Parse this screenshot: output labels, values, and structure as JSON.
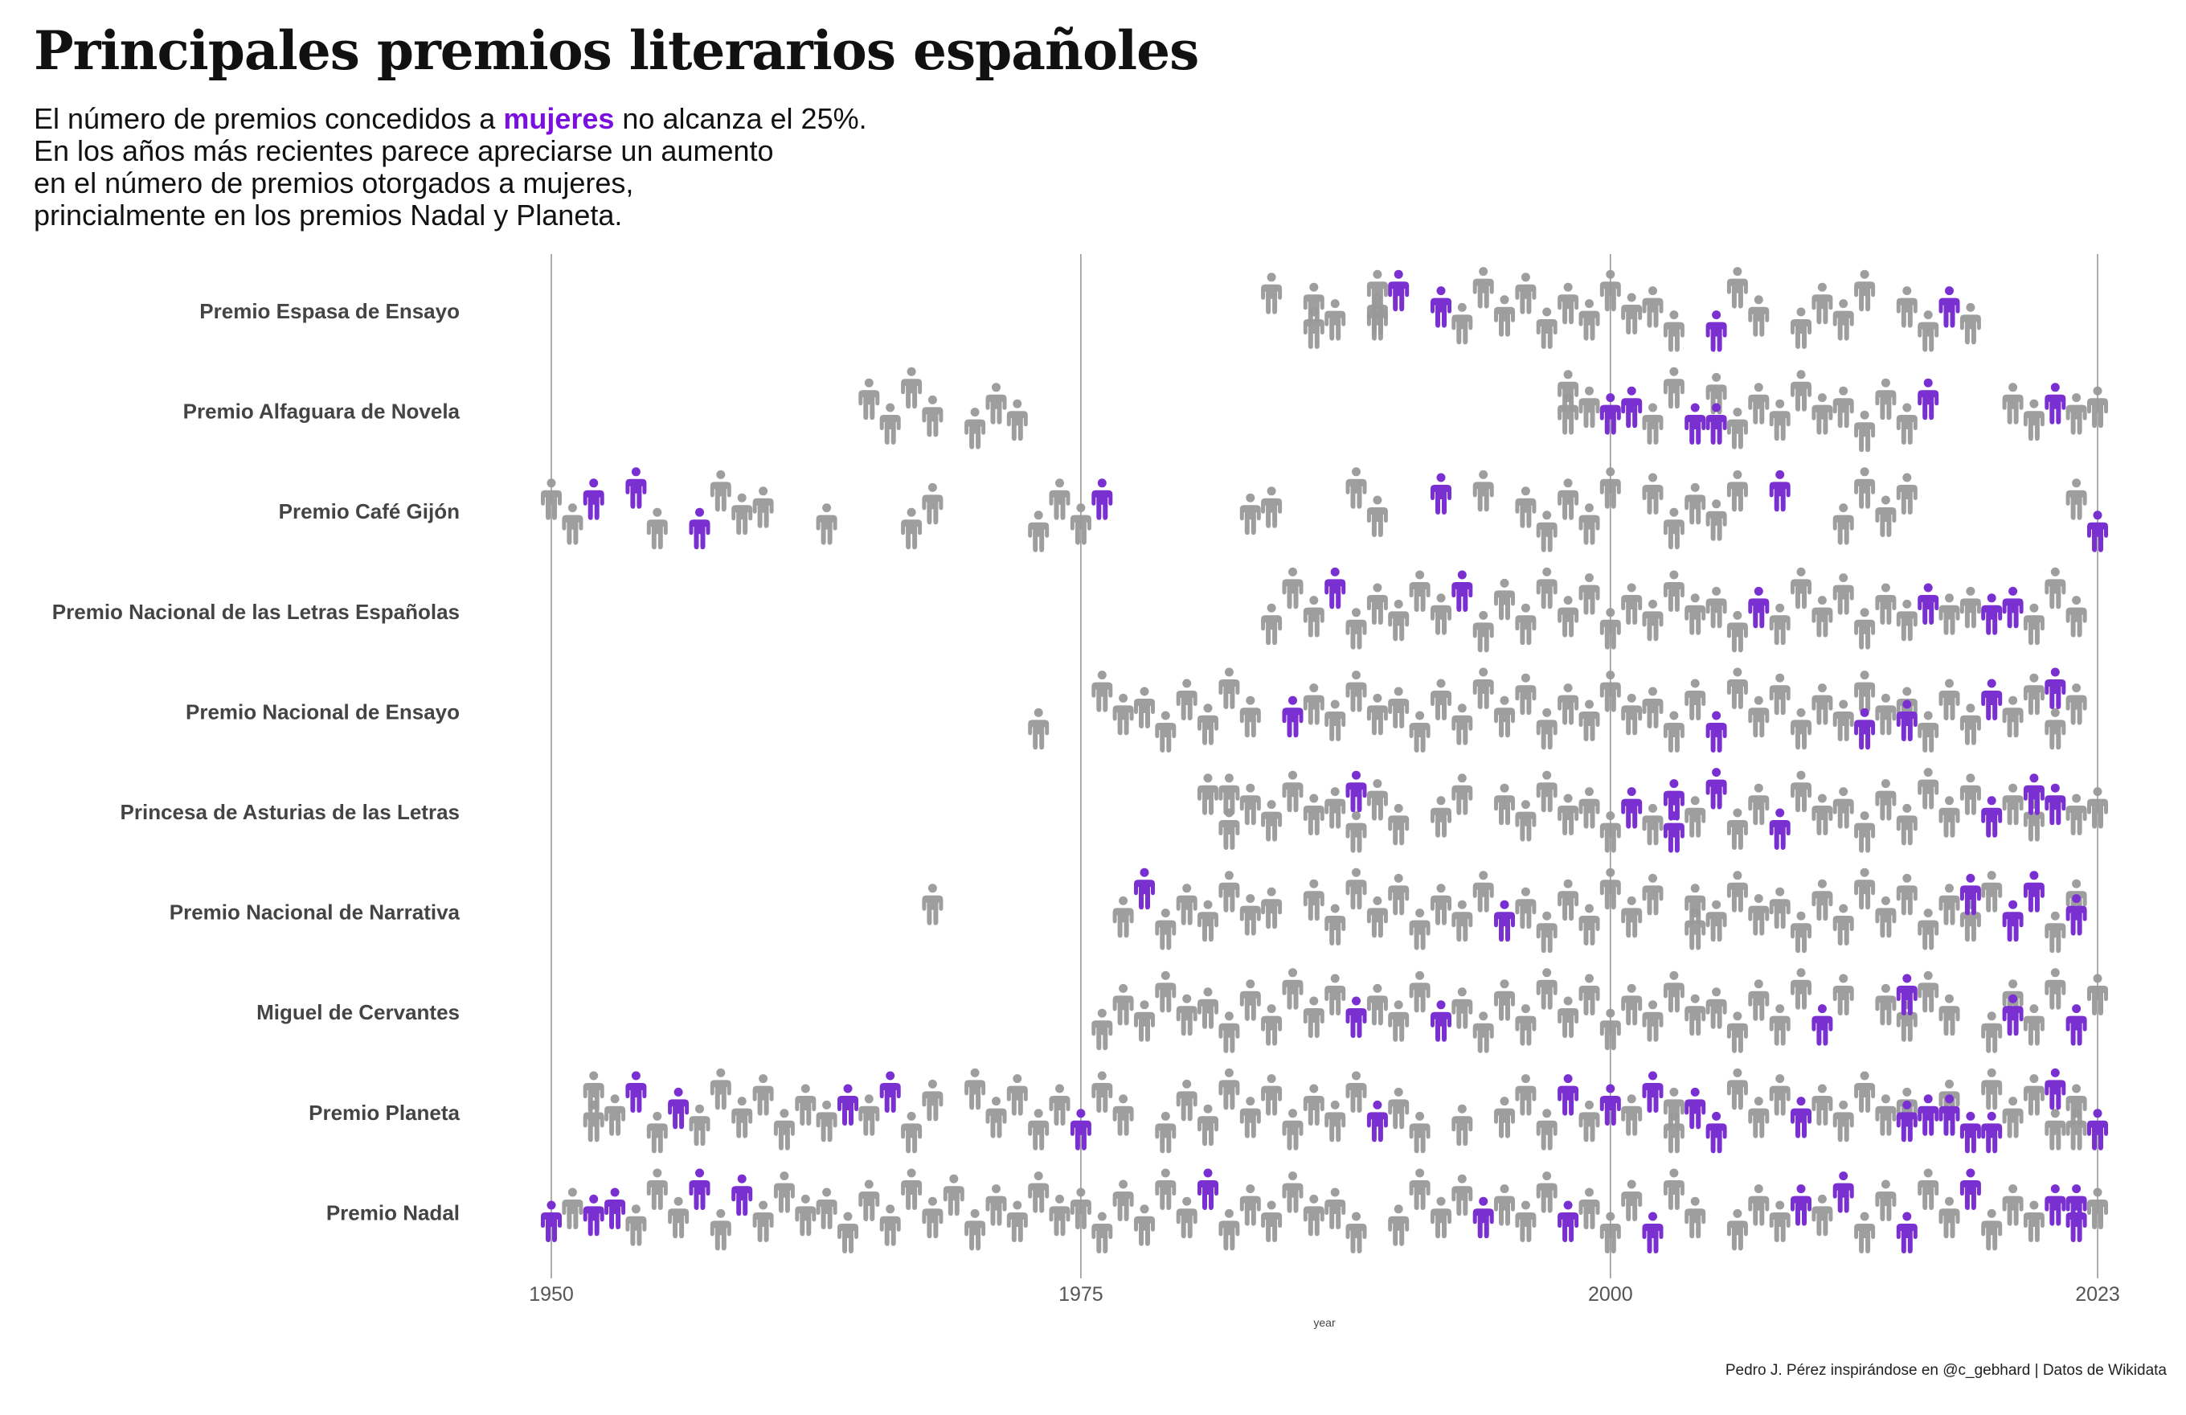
{
  "title": "Principales premios literarios españoles",
  "subtitle": {
    "line1_before": "El número de premios concedidos a ",
    "line1_highlight": "mujeres",
    "line1_after": " no alcanza el 25%.",
    "line2": "En los años más recientes parece apreciarse un aumento",
    "line3": "en el número de premios otorgados a mujeres,",
    "line4": "princialmente en los premios Nadal y Planeta."
  },
  "caption": "Pedro J. Pérez inspirándose en @c_gebhard | Datos de Wikidata",
  "colors": {
    "female": "#7a2fd1",
    "male": "#999999",
    "highlight": "#7a10e0",
    "grid": "#8a8a8a",
    "label": "#444444"
  },
  "icon": "person-icon",
  "chart_data": {
    "type": "scatter",
    "xlabel": "year",
    "xlim": [
      1950,
      2023
    ],
    "xticks": [
      1950,
      1975,
      2000,
      2023
    ],
    "grid": "vertical lines at tick years",
    "legend": "none",
    "categories": [
      "Premio Espasa de Ensayo",
      "Premio Alfaguara de Novela",
      "Premio Café Gijón",
      "Premio Nacional de las Letras Españolas",
      "Premio Nacional de Ensayo",
      "Princesa de Asturias de las Letras",
      "Premio Nacional de Narrativa",
      "Miguel de Cervantes",
      "Premio Planeta",
      "Premio Nadal"
    ],
    "series": [
      {
        "category": "Premio Espasa de Ensayo",
        "male": [
          1984,
          1986,
          1986,
          1987,
          1989,
          1989,
          1989,
          1993,
          1994,
          1995,
          1996,
          1997,
          1998,
          1999,
          2000,
          2001,
          2002,
          2003,
          2006,
          2007,
          2009,
          2010,
          2011,
          2012,
          2014,
          2015,
          2017
        ],
        "female": [
          1990,
          1992,
          2005,
          2016
        ]
      },
      {
        "category": "Premio Alfaguara de Novela",
        "male": [
          1965,
          1966,
          1967,
          1968,
          1970,
          1971,
          1972,
          1998,
          1998,
          1999,
          2002,
          2003,
          2005,
          2006,
          2007,
          2008,
          2009,
          2010,
          2011,
          2012,
          2013,
          2014,
          2019,
          2020,
          2022,
          2023
        ],
        "female": [
          2000,
          2001,
          2004,
          2005,
          2015,
          2021
        ]
      },
      {
        "category": "Premio Café Gijón",
        "male": [
          1950,
          1951,
          1955,
          1958,
          1959,
          1960,
          1963,
          1967,
          1968,
          1973,
          1974,
          1975,
          1983,
          1984,
          1988,
          1989,
          1994,
          1996,
          1997,
          1998,
          1999,
          2000,
          2002,
          2003,
          2004,
          2005,
          2006,
          2011,
          2012,
          2013,
          2014,
          2022
        ],
        "female": [
          1952,
          1954,
          1957,
          1976,
          1992,
          2008,
          2023
        ]
      },
      {
        "category": "Premio Nacional de las Letras Españolas",
        "male": [
          1984,
          1985,
          1986,
          1988,
          1989,
          1990,
          1991,
          1992,
          1994,
          1995,
          1996,
          1997,
          1998,
          1999,
          2000,
          2001,
          2002,
          2003,
          2004,
          2005,
          2006,
          2008,
          2009,
          2010,
          2011,
          2012,
          2013,
          2014,
          2016,
          2017,
          2020,
          2021,
          2022
        ],
        "female": [
          1987,
          1993,
          2007,
          2015,
          2018,
          2019
        ]
      },
      {
        "category": "Premio Nacional de Ensayo",
        "male": [
          1973,
          1976,
          1977,
          1978,
          1979,
          1980,
          1981,
          1982,
          1983,
          1986,
          1987,
          1988,
          1989,
          1990,
          1991,
          1992,
          1993,
          1994,
          1995,
          1996,
          1997,
          1998,
          1999,
          2000,
          2001,
          2002,
          2003,
          2004,
          2006,
          2007,
          2008,
          2009,
          2010,
          2011,
          2012,
          2013,
          2014,
          2015,
          2016,
          2017,
          2019,
          2020,
          2021,
          2022
        ],
        "female": [
          1985,
          2005,
          2012,
          2014,
          2018,
          2021
        ]
      },
      {
        "category": "Princesa de Asturias de las Letras",
        "male": [
          1981,
          1982,
          1982,
          1983,
          1984,
          1985,
          1986,
          1987,
          1988,
          1989,
          1990,
          1992,
          1993,
          1995,
          1996,
          1997,
          1998,
          1999,
          2000,
          2002,
          2004,
          2006,
          2007,
          2009,
          2010,
          2011,
          2012,
          2013,
          2014,
          2015,
          2016,
          2017,
          2019,
          2020,
          2022,
          2023
        ],
        "female": [
          1988,
          2001,
          2003,
          2003,
          2005,
          2008,
          2018,
          2020,
          2021
        ]
      },
      {
        "category": "Premio Nacional de Narrativa",
        "male": [
          1968,
          1977,
          1979,
          1980,
          1981,
          1982,
          1983,
          1984,
          1986,
          1987,
          1988,
          1989,
          1990,
          1991,
          1992,
          1993,
          1994,
          1996,
          1997,
          1998,
          1999,
          2000,
          2001,
          2002,
          2004,
          2004,
          2005,
          2006,
          2007,
          2008,
          2009,
          2010,
          2011,
          2012,
          2013,
          2014,
          2015,
          2016,
          2017,
          2018,
          2021,
          2022
        ],
        "female": [
          1978,
          1995,
          2017,
          2019,
          2020,
          2022
        ]
      },
      {
        "category": "Miguel de Cervantes",
        "male": [
          1976,
          1977,
          1978,
          1979,
          1980,
          1981,
          1982,
          1983,
          1984,
          1985,
          1986,
          1987,
          1989,
          1990,
          1991,
          1993,
          1994,
          1995,
          1996,
          1997,
          1998,
          1999,
          2000,
          2001,
          2002,
          2003,
          2004,
          2005,
          2006,
          2007,
          2008,
          2009,
          2011,
          2013,
          2014,
          2015,
          2016,
          2018,
          2019,
          2020,
          2021,
          2023
        ],
        "female": [
          1988,
          1992,
          2010,
          2014,
          2019,
          2022
        ]
      },
      {
        "category": "Premio Planeta",
        "male": [
          1952,
          1952,
          1953,
          1955,
          1957,
          1958,
          1959,
          1960,
          1961,
          1962,
          1963,
          1965,
          1967,
          1968,
          1970,
          1971,
          1972,
          1973,
          1974,
          1976,
          1977,
          1979,
          1980,
          1981,
          1982,
          1983,
          1984,
          1985,
          1986,
          1987,
          1988,
          1990,
          1991,
          1993,
          1995,
          1996,
          1997,
          1999,
          2001,
          2003,
          2003,
          2006,
          2007,
          2008,
          2010,
          2011,
          2012,
          2013,
          2014,
          2016,
          2018,
          2019,
          2020,
          2021,
          2022,
          2022
        ],
        "female": [
          1954,
          1956,
          1964,
          1966,
          1975,
          1989,
          1998,
          2000,
          2002,
          2004,
          2005,
          2009,
          2014,
          2015,
          2016,
          2017,
          2018,
          2021,
          2023
        ]
      },
      {
        "category": "Premio Nadal",
        "male": [
          1951,
          1954,
          1955,
          1956,
          1958,
          1960,
          1961,
          1962,
          1963,
          1964,
          1965,
          1966,
          1967,
          1968,
          1969,
          1970,
          1971,
          1972,
          1973,
          1974,
          1975,
          1976,
          1977,
          1978,
          1979,
          1980,
          1982,
          1983,
          1984,
          1985,
          1986,
          1987,
          1988,
          1990,
          1991,
          1992,
          1993,
          1995,
          1996,
          1997,
          1999,
          2000,
          2001,
          2003,
          2004,
          2006,
          2007,
          2008,
          2010,
          2012,
          2013,
          2015,
          2016,
          2018,
          2019,
          2020,
          2023
        ],
        "female": [
          1950,
          1952,
          1953,
          1957,
          1959,
          1981,
          1994,
          1998,
          2002,
          2009,
          2011,
          2014,
          2017,
          2021,
          2022,
          2022
        ]
      }
    ]
  }
}
